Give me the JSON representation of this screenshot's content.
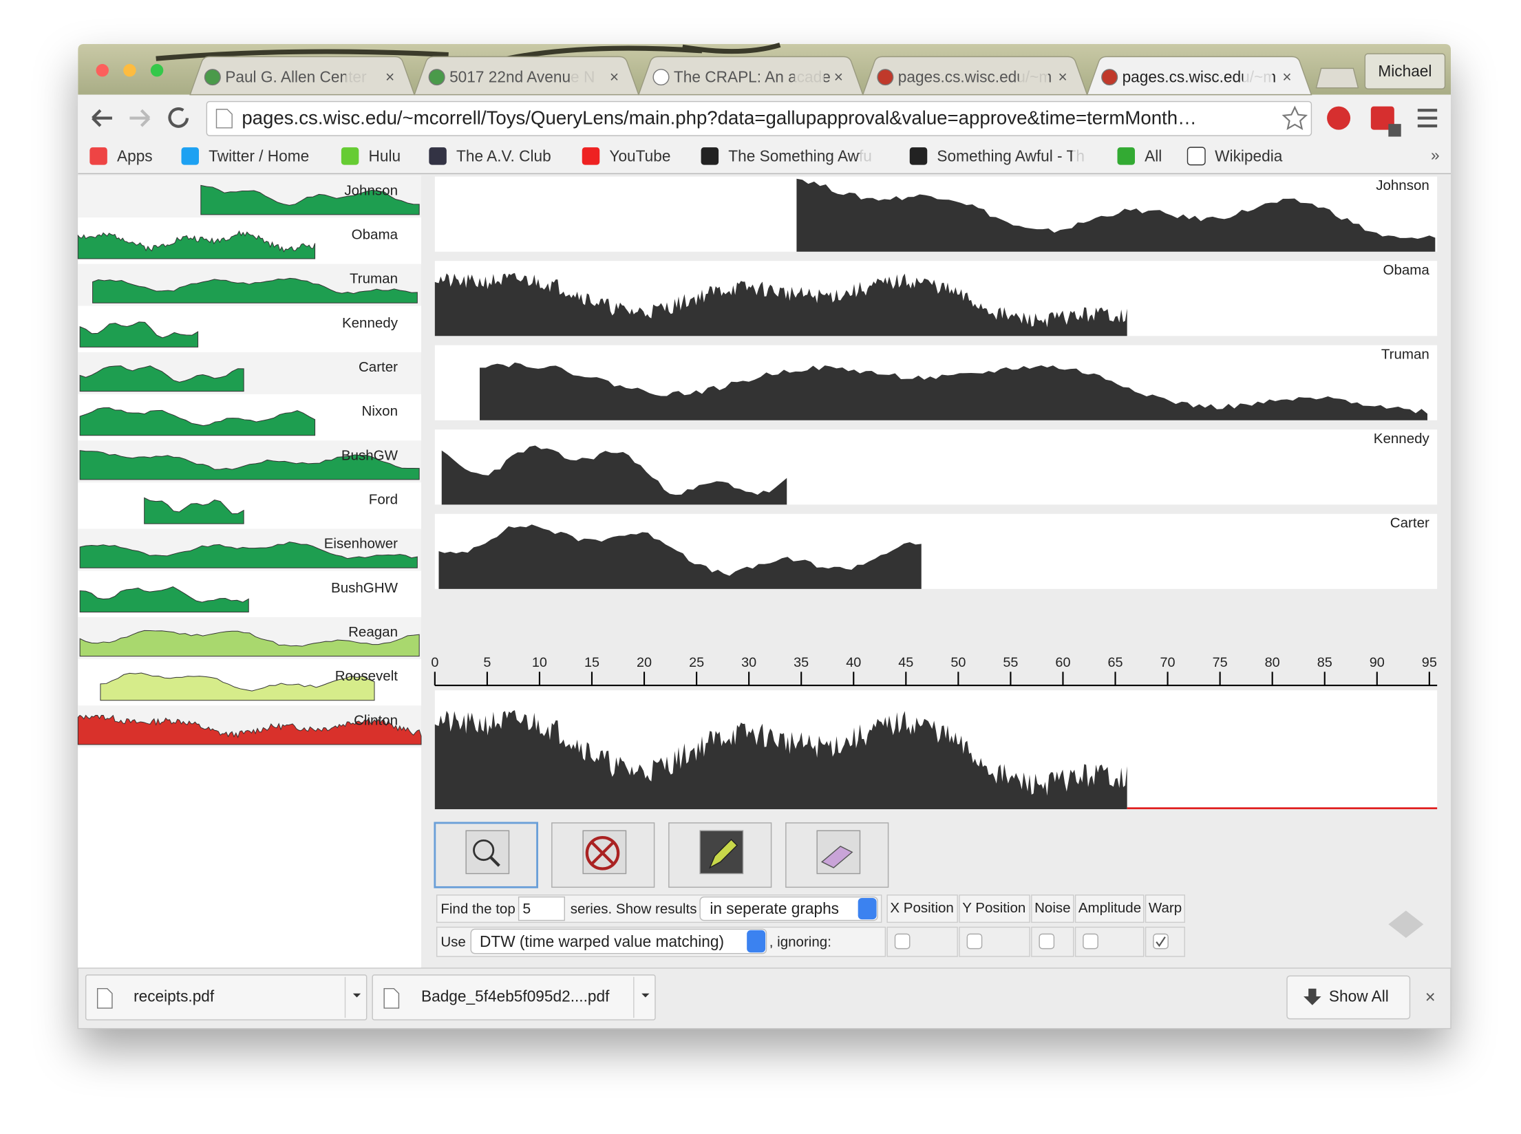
{
  "tabs": [
    "Paul G. Allen Center",
    "5017 22nd Avenue N",
    "The CRAPL: An acade",
    "pages.cs.wisc.edu/~m",
    "pages.cs.wisc.edu/~m"
  ],
  "profile": "Michael",
  "url": "pages.cs.wisc.edu/~mcorrell/Toys/QueryLens/main.php?data=gallupapproval&value=approve&time=termMonth…",
  "bookmarks": [
    "Apps",
    "Twitter / Home",
    "Hulu",
    "The A.V. Club",
    "YouTube",
    "The Something Awfu",
    "Something Awful - Th",
    "All",
    "Wikipedia"
  ],
  "thumbnails": [
    "Johnson",
    "Obama",
    "Truman",
    "Kennedy",
    "Carter",
    "Nixon",
    "BushGW",
    "Ford",
    "Eisenhower",
    "BushGHW",
    "Reagan",
    "Roosevelt",
    "Clinton"
  ],
  "results": [
    "Johnson",
    "Obama",
    "Truman",
    "Kennedy",
    "Carter"
  ],
  "axis_ticks": [
    0,
    5,
    10,
    15,
    20,
    25,
    30,
    35,
    40,
    45,
    50,
    55,
    60,
    65,
    70,
    75,
    80,
    85,
    90,
    95
  ],
  "controls": {
    "find_label": "Find the top",
    "find_value": "5",
    "series_label": "series. Show results",
    "results_mode": "in seperate graphs",
    "use_label": "Use",
    "method": "DTW (time warped value matching)",
    "ignoring_label": ", ignoring:",
    "options": [
      "X Position",
      "Y Position",
      "Noise",
      "Amplitude",
      "Warp"
    ],
    "checked": [
      false,
      false,
      false,
      false,
      true
    ]
  },
  "downloads": [
    "receipts.pdf",
    "Badge_5f4eb5f095d2....pdf"
  ],
  "show_all": "Show All"
}
